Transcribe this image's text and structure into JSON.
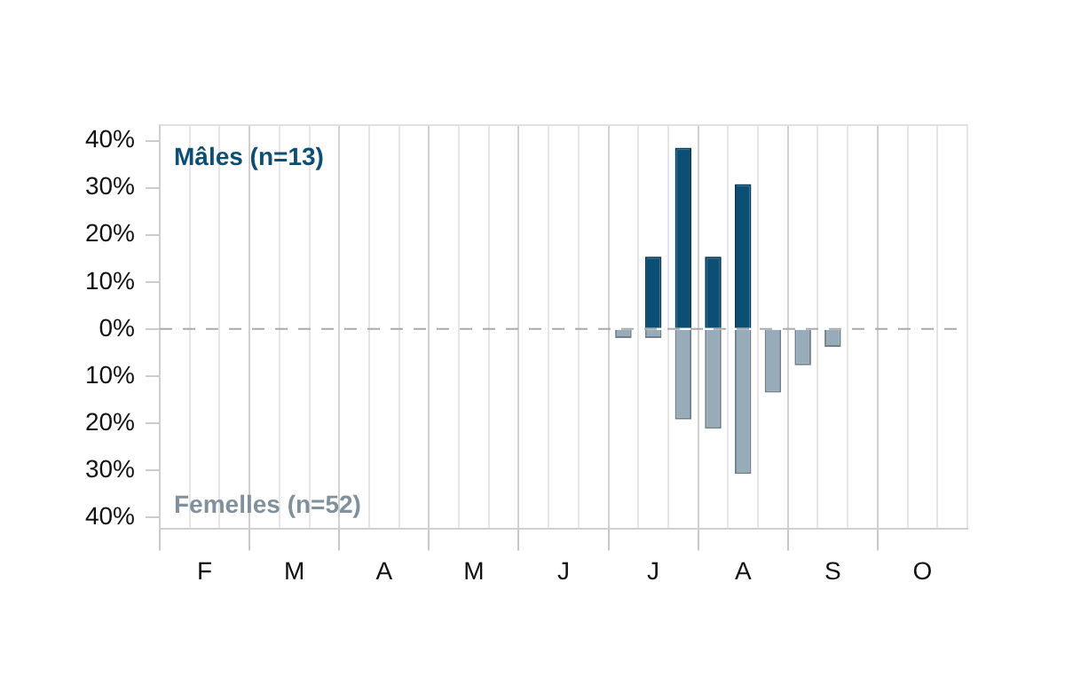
{
  "chart_data": {
    "type": "bar",
    "stacked": true,
    "grid": "x",
    "categories": [
      null,
      "F",
      null,
      null,
      "M",
      null,
      null,
      "A",
      null,
      null,
      "M",
      null,
      null,
      "J",
      null,
      null,
      "J",
      null,
      null,
      "A",
      null,
      null,
      "S",
      null,
      null,
      "O",
      null
    ],
    "series": [
      {
        "name": "Mâles (n=13)",
        "color": "#0b4f74",
        "values": [
          null,
          null,
          null,
          null,
          null,
          null,
          null,
          null,
          null,
          null,
          null,
          null,
          null,
          null,
          null,
          null,
          15.4,
          38.5,
          15.4,
          30.8,
          null,
          null,
          null,
          null,
          null,
          null,
          null
        ]
      },
      {
        "name": "Femelles (n=52)",
        "color": "#97abb9",
        "values": [
          null,
          null,
          null,
          null,
          null,
          null,
          null,
          null,
          null,
          null,
          null,
          null,
          null,
          null,
          null,
          -1.9,
          -1.9,
          -19.2,
          -21.2,
          -30.8,
          -13.5,
          -7.7,
          -3.8,
          null,
          null,
          null,
          null
        ]
      }
    ],
    "ylim": [
      -42.5,
      43.5
    ],
    "yticks": [
      {
        "value": -40,
        "label": "40%"
      },
      {
        "value": -30,
        "label": "30%"
      },
      {
        "value": -20,
        "label": "20%"
      },
      {
        "value": -10,
        "label": "10%"
      },
      {
        "value": 0,
        "label": "0%"
      },
      {
        "value": 10,
        "label": "10%"
      },
      {
        "value": 20,
        "label": "20%"
      },
      {
        "value": 30,
        "label": "30%"
      },
      {
        "value": 40,
        "label": "40%"
      }
    ],
    "ref_lines": [
      {
        "axis": "y",
        "value": 0,
        "color": "#aaaaaa",
        "line_style": "dashed"
      }
    ]
  }
}
